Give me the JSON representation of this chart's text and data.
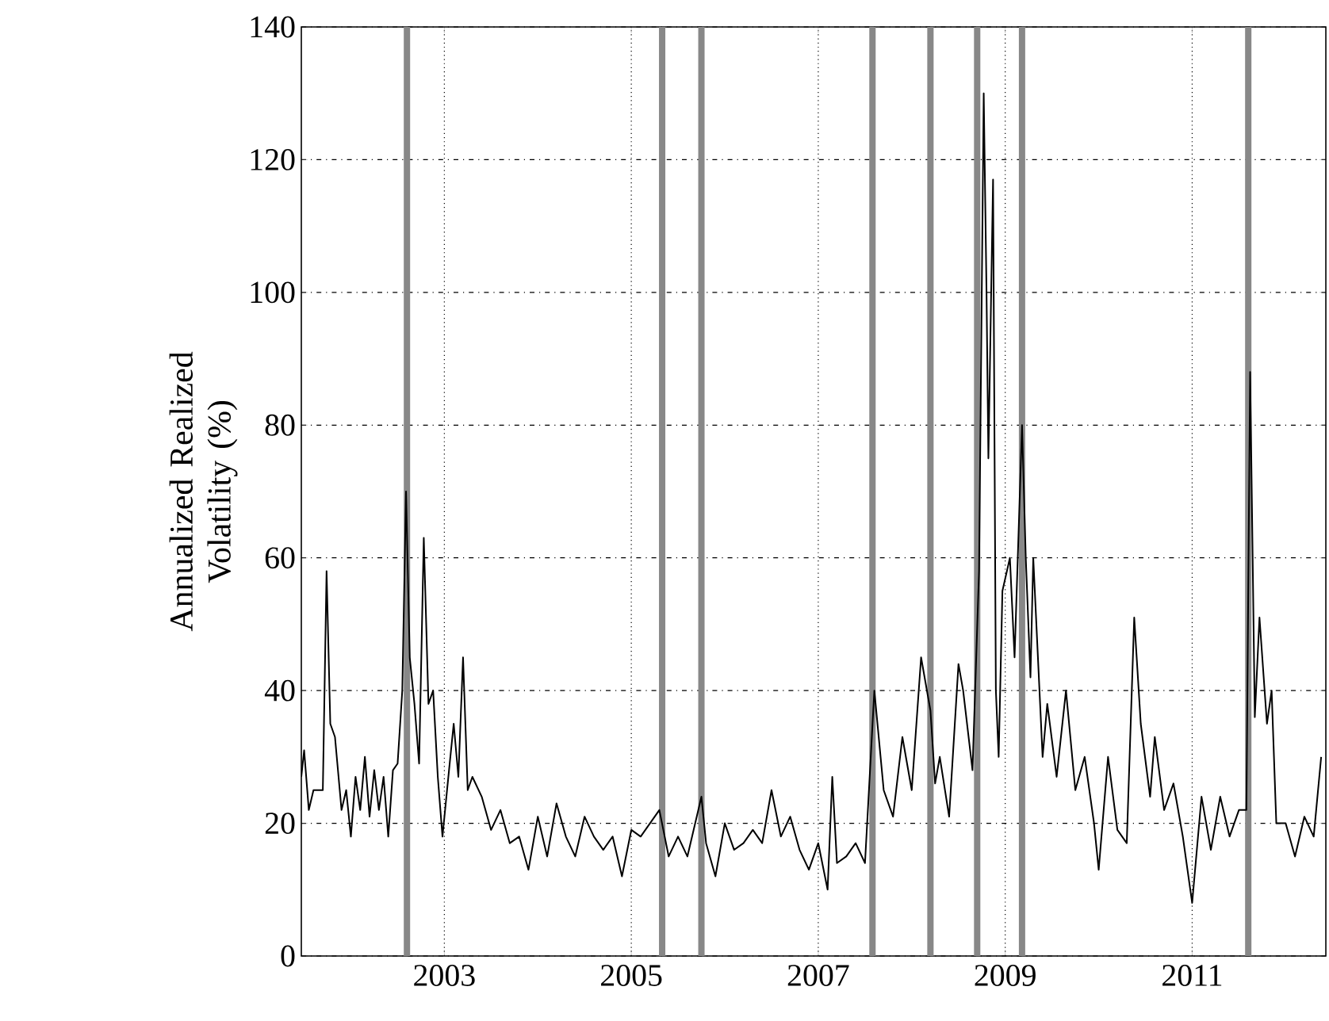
{
  "chart_data": {
    "type": "line",
    "ylabel": "Annualized Realized Volatility (%)",
    "xlim": [
      2001.47,
      2012.43
    ],
    "ylim": [
      0,
      140
    ],
    "xticks": [
      2003,
      2005,
      2007,
      2009,
      2011
    ],
    "yticks": [
      0,
      20,
      40,
      60,
      80,
      100,
      120,
      140
    ],
    "grid": true,
    "line_style": "solid",
    "marker": "none",
    "x": [
      2001.47,
      2001.5,
      2001.55,
      2001.6,
      2001.7,
      2001.74,
      2001.78,
      2001.83,
      2001.9,
      2001.95,
      2002.0,
      2002.05,
      2002.1,
      2002.15,
      2002.2,
      2002.25,
      2002.3,
      2002.35,
      2002.4,
      2002.45,
      2002.5,
      2002.55,
      2002.59,
      2002.63,
      2002.68,
      2002.73,
      2002.78,
      2002.83,
      2002.88,
      2002.93,
      2002.98,
      2003.05,
      2003.1,
      2003.15,
      2003.2,
      2003.25,
      2003.3,
      2003.4,
      2003.5,
      2003.6,
      2003.7,
      2003.8,
      2003.9,
      2004.0,
      2004.1,
      2004.2,
      2004.3,
      2004.4,
      2004.5,
      2004.6,
      2004.7,
      2004.8,
      2004.9,
      2005.0,
      2005.1,
      2005.3,
      2005.4,
      2005.5,
      2005.6,
      2005.75,
      2005.8,
      2005.9,
      2006.0,
      2006.1,
      2006.2,
      2006.3,
      2006.4,
      2006.5,
      2006.6,
      2006.7,
      2006.8,
      2006.9,
      2007.0,
      2007.1,
      2007.15,
      2007.2,
      2007.3,
      2007.4,
      2007.5,
      2007.6,
      2007.7,
      2007.8,
      2007.9,
      2008.0,
      2008.1,
      2008.2,
      2008.25,
      2008.3,
      2008.4,
      2008.5,
      2008.55,
      2008.65,
      2008.72,
      2008.77,
      2008.8,
      2008.82,
      2008.87,
      2008.9,
      2008.93,
      2008.97,
      2009.05,
      2009.1,
      2009.18,
      2009.22,
      2009.27,
      2009.3,
      2009.4,
      2009.45,
      2009.55,
      2009.65,
      2009.75,
      2009.85,
      2009.95,
      2010.0,
      2010.1,
      2010.2,
      2010.3,
      2010.38,
      2010.45,
      2010.55,
      2010.6,
      2010.7,
      2010.8,
      2010.9,
      2011.0,
      2011.1,
      2011.2,
      2011.3,
      2011.4,
      2011.5,
      2011.58,
      2011.62,
      2011.67,
      2011.72,
      2011.8,
      2011.85,
      2011.9,
      2012.0,
      2012.1,
      2012.2,
      2012.3,
      2012.38
    ],
    "series": [
      {
        "color": "#000000",
        "values": [
          27,
          31,
          22,
          25,
          25,
          58,
          35,
          33,
          22,
          25,
          18,
          27,
          22,
          30,
          21,
          28,
          22,
          27,
          18,
          28,
          29,
          40,
          70,
          45,
          38,
          29,
          63,
          38,
          40,
          27,
          18,
          28,
          35,
          27,
          45,
          25,
          27,
          24,
          19,
          22,
          17,
          18,
          13,
          21,
          15,
          23,
          18,
          15,
          21,
          18,
          16,
          18,
          12,
          19,
          18,
          22,
          15,
          18,
          15,
          24,
          17,
          12,
          20,
          16,
          17,
          19,
          17,
          25,
          18,
          21,
          16,
          13,
          17,
          10,
          27,
          14,
          15,
          17,
          14,
          40,
          25,
          21,
          33,
          25,
          45,
          37,
          26,
          30,
          21,
          44,
          40,
          28,
          58,
          130,
          100,
          75,
          117,
          40,
          30,
          55,
          60,
          45,
          80,
          60,
          42,
          60,
          30,
          38,
          27,
          40,
          25,
          30,
          20,
          13,
          30,
          19,
          17,
          51,
          35,
          24,
          33,
          22,
          26,
          18,
          8,
          24,
          16,
          24,
          18,
          22,
          22,
          88,
          36,
          51,
          35,
          40,
          20,
          20,
          15,
          21,
          18,
          30
        ]
      }
    ],
    "ref_lines": [
      {
        "axis": "x",
        "value": 2002.6,
        "color": "#888888"
      },
      {
        "axis": "x",
        "value": 2005.33,
        "color": "#888888"
      },
      {
        "axis": "x",
        "value": 2005.75,
        "color": "#888888"
      },
      {
        "axis": "x",
        "value": 2007.58,
        "color": "#888888"
      },
      {
        "axis": "x",
        "value": 2008.2,
        "color": "#888888"
      },
      {
        "axis": "x",
        "value": 2008.7,
        "color": "#888888"
      },
      {
        "axis": "x",
        "value": 2009.18,
        "color": "#888888"
      },
      {
        "axis": "x",
        "value": 2011.6,
        "color": "#888888"
      }
    ]
  }
}
